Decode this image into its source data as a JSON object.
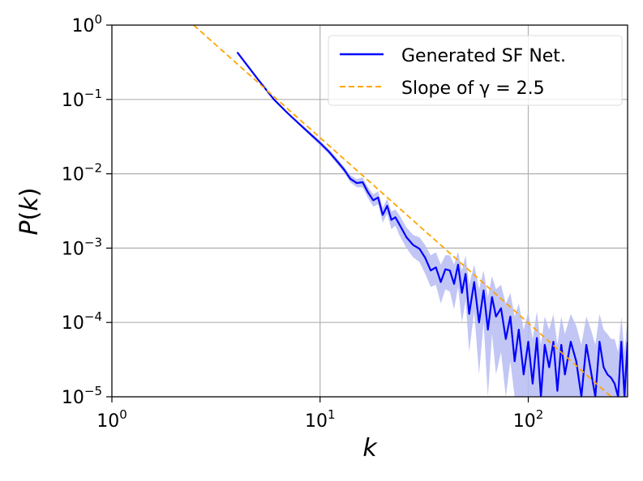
{
  "chart_data": {
    "type": "line",
    "xscale": "log",
    "yscale": "log",
    "xlim": [
      1,
      300
    ],
    "ylim": [
      1e-05,
      1
    ],
    "xlabel": "k",
    "ylabel": "P(k)",
    "grid": true,
    "legend_position": "top-right",
    "x_ticks": [
      {
        "value": 1,
        "base": "10",
        "exp": "0"
      },
      {
        "value": 10,
        "base": "10",
        "exp": "1"
      },
      {
        "value": 100,
        "base": "10",
        "exp": "2"
      }
    ],
    "y_ticks": [
      {
        "value": 1,
        "base": "10",
        "exp": "0"
      },
      {
        "value": 0.1,
        "base": "10",
        "exp": "−1"
      },
      {
        "value": 0.01,
        "base": "10",
        "exp": "−2"
      },
      {
        "value": 0.001,
        "base": "10",
        "exp": "−3"
      },
      {
        "value": 0.0001,
        "base": "10",
        "exp": "−4"
      },
      {
        "value": 1e-05,
        "base": "10",
        "exp": "−5"
      }
    ],
    "series": [
      {
        "name": "Generated SF Net.",
        "color": "#0000ff",
        "style": "solid",
        "band_color": "#b7bcf2",
        "x": [
          4,
          5,
          6,
          7,
          8,
          9,
          10,
          11,
          12,
          13,
          14,
          15,
          16,
          17,
          18,
          19,
          20,
          21,
          22,
          23,
          24,
          26,
          28,
          30,
          32,
          34,
          36,
          38,
          40,
          42,
          44,
          46,
          48,
          50,
          52,
          55,
          58,
          61,
          64,
          67,
          70,
          74,
          78,
          82,
          86,
          90,
          95,
          100,
          105,
          110,
          115,
          120,
          126,
          132,
          138,
          144,
          150,
          160,
          170,
          180,
          190,
          200,
          210,
          220,
          230,
          240,
          250,
          260,
          270,
          280,
          290,
          300
        ],
        "y": [
          0.43,
          0.19,
          0.1,
          0.065,
          0.046,
          0.034,
          0.026,
          0.02,
          0.015,
          0.0115,
          0.0085,
          0.0075,
          0.0077,
          0.0056,
          0.0044,
          0.0048,
          0.0028,
          0.0037,
          0.0024,
          0.0026,
          0.0021,
          0.0014,
          0.0011,
          0.00098,
          0.00074,
          0.0005,
          0.00055,
          0.00035,
          0.00052,
          0.0005,
          0.00033,
          0.0006,
          0.00025,
          0.00045,
          0.00013,
          0.00035,
          0.0001,
          0.00027,
          8e-05,
          0.00022,
          0.00012,
          0.000155,
          6e-05,
          0.00012,
          3e-05,
          8e-05,
          2e-05,
          5.5e-05,
          1.5e-05,
          6.2e-05,
          1e-05,
          5e-05,
          2.5e-05,
          5.5e-05,
          1.2e-05,
          5e-05,
          2e-05,
          5.5e-05,
          3e-05,
          1e-05,
          5e-05,
          2.2e-05,
          1e-05,
          5.5e-05,
          2.5e-05,
          2e-05,
          1.8e-05,
          1.5e-05,
          1e-05,
          5.5e-05,
          1e-05,
          5.5e-05
        ],
        "y_lower": [
          0.42,
          0.185,
          0.098,
          0.063,
          0.044,
          0.032,
          0.024,
          0.0185,
          0.0138,
          0.0105,
          0.0076,
          0.0066,
          0.0066,
          0.0047,
          0.0036,
          0.0039,
          0.0022,
          0.0029,
          0.0018,
          0.002,
          0.0015,
          0.001,
          0.00075,
          0.00065,
          0.00045,
          0.0003,
          0.00032,
          0.00018,
          0.00028,
          0.00026,
          0.00015,
          0.0003,
          0.0001,
          0.0002,
          4e-05,
          0.00014,
          2e-05,
          0.0001,
          1e-05,
          7e-05,
          2e-05,
          4e-05,
          1e-05,
          3e-05,
          1e-05,
          1e-05,
          1e-05,
          1e-05,
          1e-05,
          1e-05,
          1e-05,
          1e-05,
          1e-05,
          1e-05,
          1e-05,
          1e-05,
          1e-05,
          1e-05,
          1e-05,
          1e-05,
          1e-05,
          1e-05,
          1e-05,
          1e-05,
          1e-05,
          1e-05,
          1e-05,
          1e-05,
          1e-05,
          1e-05,
          1e-05,
          1e-05
        ],
        "y_upper": [
          0.44,
          0.195,
          0.102,
          0.067,
          0.048,
          0.036,
          0.028,
          0.0215,
          0.0163,
          0.0126,
          0.0095,
          0.0085,
          0.0089,
          0.0066,
          0.0053,
          0.0058,
          0.0035,
          0.0046,
          0.0031,
          0.0033,
          0.0028,
          0.0019,
          0.0015,
          0.0014,
          0.0011,
          0.0008,
          0.00088,
          0.0006,
          0.0008,
          0.0008,
          0.0006,
          0.0009,
          0.0005,
          0.0008,
          0.00032,
          0.0006,
          0.00028,
          0.0005,
          0.00022,
          0.00042,
          0.00028,
          0.00032,
          0.00018,
          0.00025,
          0.00012,
          0.00018,
          8e-05,
          0.00014,
          6e-05,
          0.00014,
          5e-05,
          0.00012,
          8e-05,
          0.00013,
          5e-05,
          0.00012,
          7e-05,
          0.00013,
          9e-05,
          5e-05,
          0.00012,
          8e-05,
          5e-05,
          0.00013,
          8e-05,
          7e-05,
          6e-05,
          6e-05,
          4e-05,
          0.00012,
          4e-05,
          0.00012
        ]
      },
      {
        "name": "Slope of γ = 2.5",
        "color": "#ffa500",
        "style": "dashed",
        "x": [
          2.47,
          250
        ],
        "y": [
          1,
          1e-05
        ]
      }
    ]
  }
}
